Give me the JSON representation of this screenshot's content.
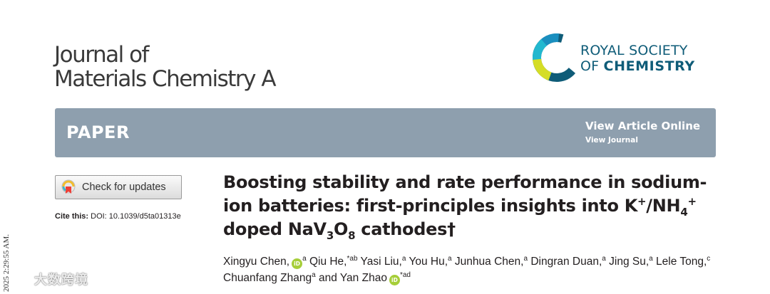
{
  "journal": {
    "title_line1": "Journal of",
    "title_line2": "Materials Chemistry A"
  },
  "publisher": {
    "line1": "ROYAL SOCIETY",
    "line2_prefix": "OF ",
    "line2_bold": "CHEMISTRY"
  },
  "banner": {
    "label": "PAPER",
    "view_online": "View Article Online",
    "view_journal": "View Journal"
  },
  "updates_button": {
    "label": "Check for updates"
  },
  "cite": {
    "label": "Cite this:",
    "doi": "DOI: 10.1039/d5ta01313e"
  },
  "article": {
    "title_part1": "Boosting stability and rate performance in sodium-ion batteries: first-principles insights into K",
    "title_sup1": "+",
    "title_part2": "/NH",
    "title_sub1": "4",
    "title_sup2": "+",
    "title_part3": " doped NaV",
    "title_sub2": "3",
    "title_part4": "O",
    "title_sub3": "8",
    "title_part5": " cathodes",
    "title_dagger": "†"
  },
  "authors": [
    {
      "name": "Xingyu Chen,",
      "orcid": true,
      "aff": "a"
    },
    {
      "name": "Qiu He,",
      "orcid": false,
      "aff": "*ab"
    },
    {
      "name": "Yasi Liu,",
      "orcid": false,
      "aff": "a"
    },
    {
      "name": "You Hu,",
      "orcid": false,
      "aff": "a"
    },
    {
      "name": "Junhua Chen,",
      "orcid": false,
      "aff": "a"
    },
    {
      "name": "Dingran Duan,",
      "orcid": false,
      "aff": "a"
    },
    {
      "name": "Jing Su,",
      "orcid": false,
      "aff": "a"
    },
    {
      "name": "Lele Tong,",
      "orcid": false,
      "aff": "c"
    },
    {
      "name": "Chuanfang Zhang",
      "orcid": false,
      "aff": "a"
    },
    {
      "name": "and Yan Zhao",
      "orcid": true,
      "aff": "*ad"
    }
  ],
  "orcid_label": "iD",
  "timestamp": "2025 2:29:55 AM.",
  "watermark": "大数跨境",
  "colors": {
    "banner": "#8e9fae",
    "rsc_blue": "#0f5c78",
    "orcid_green": "#a6ce39"
  }
}
